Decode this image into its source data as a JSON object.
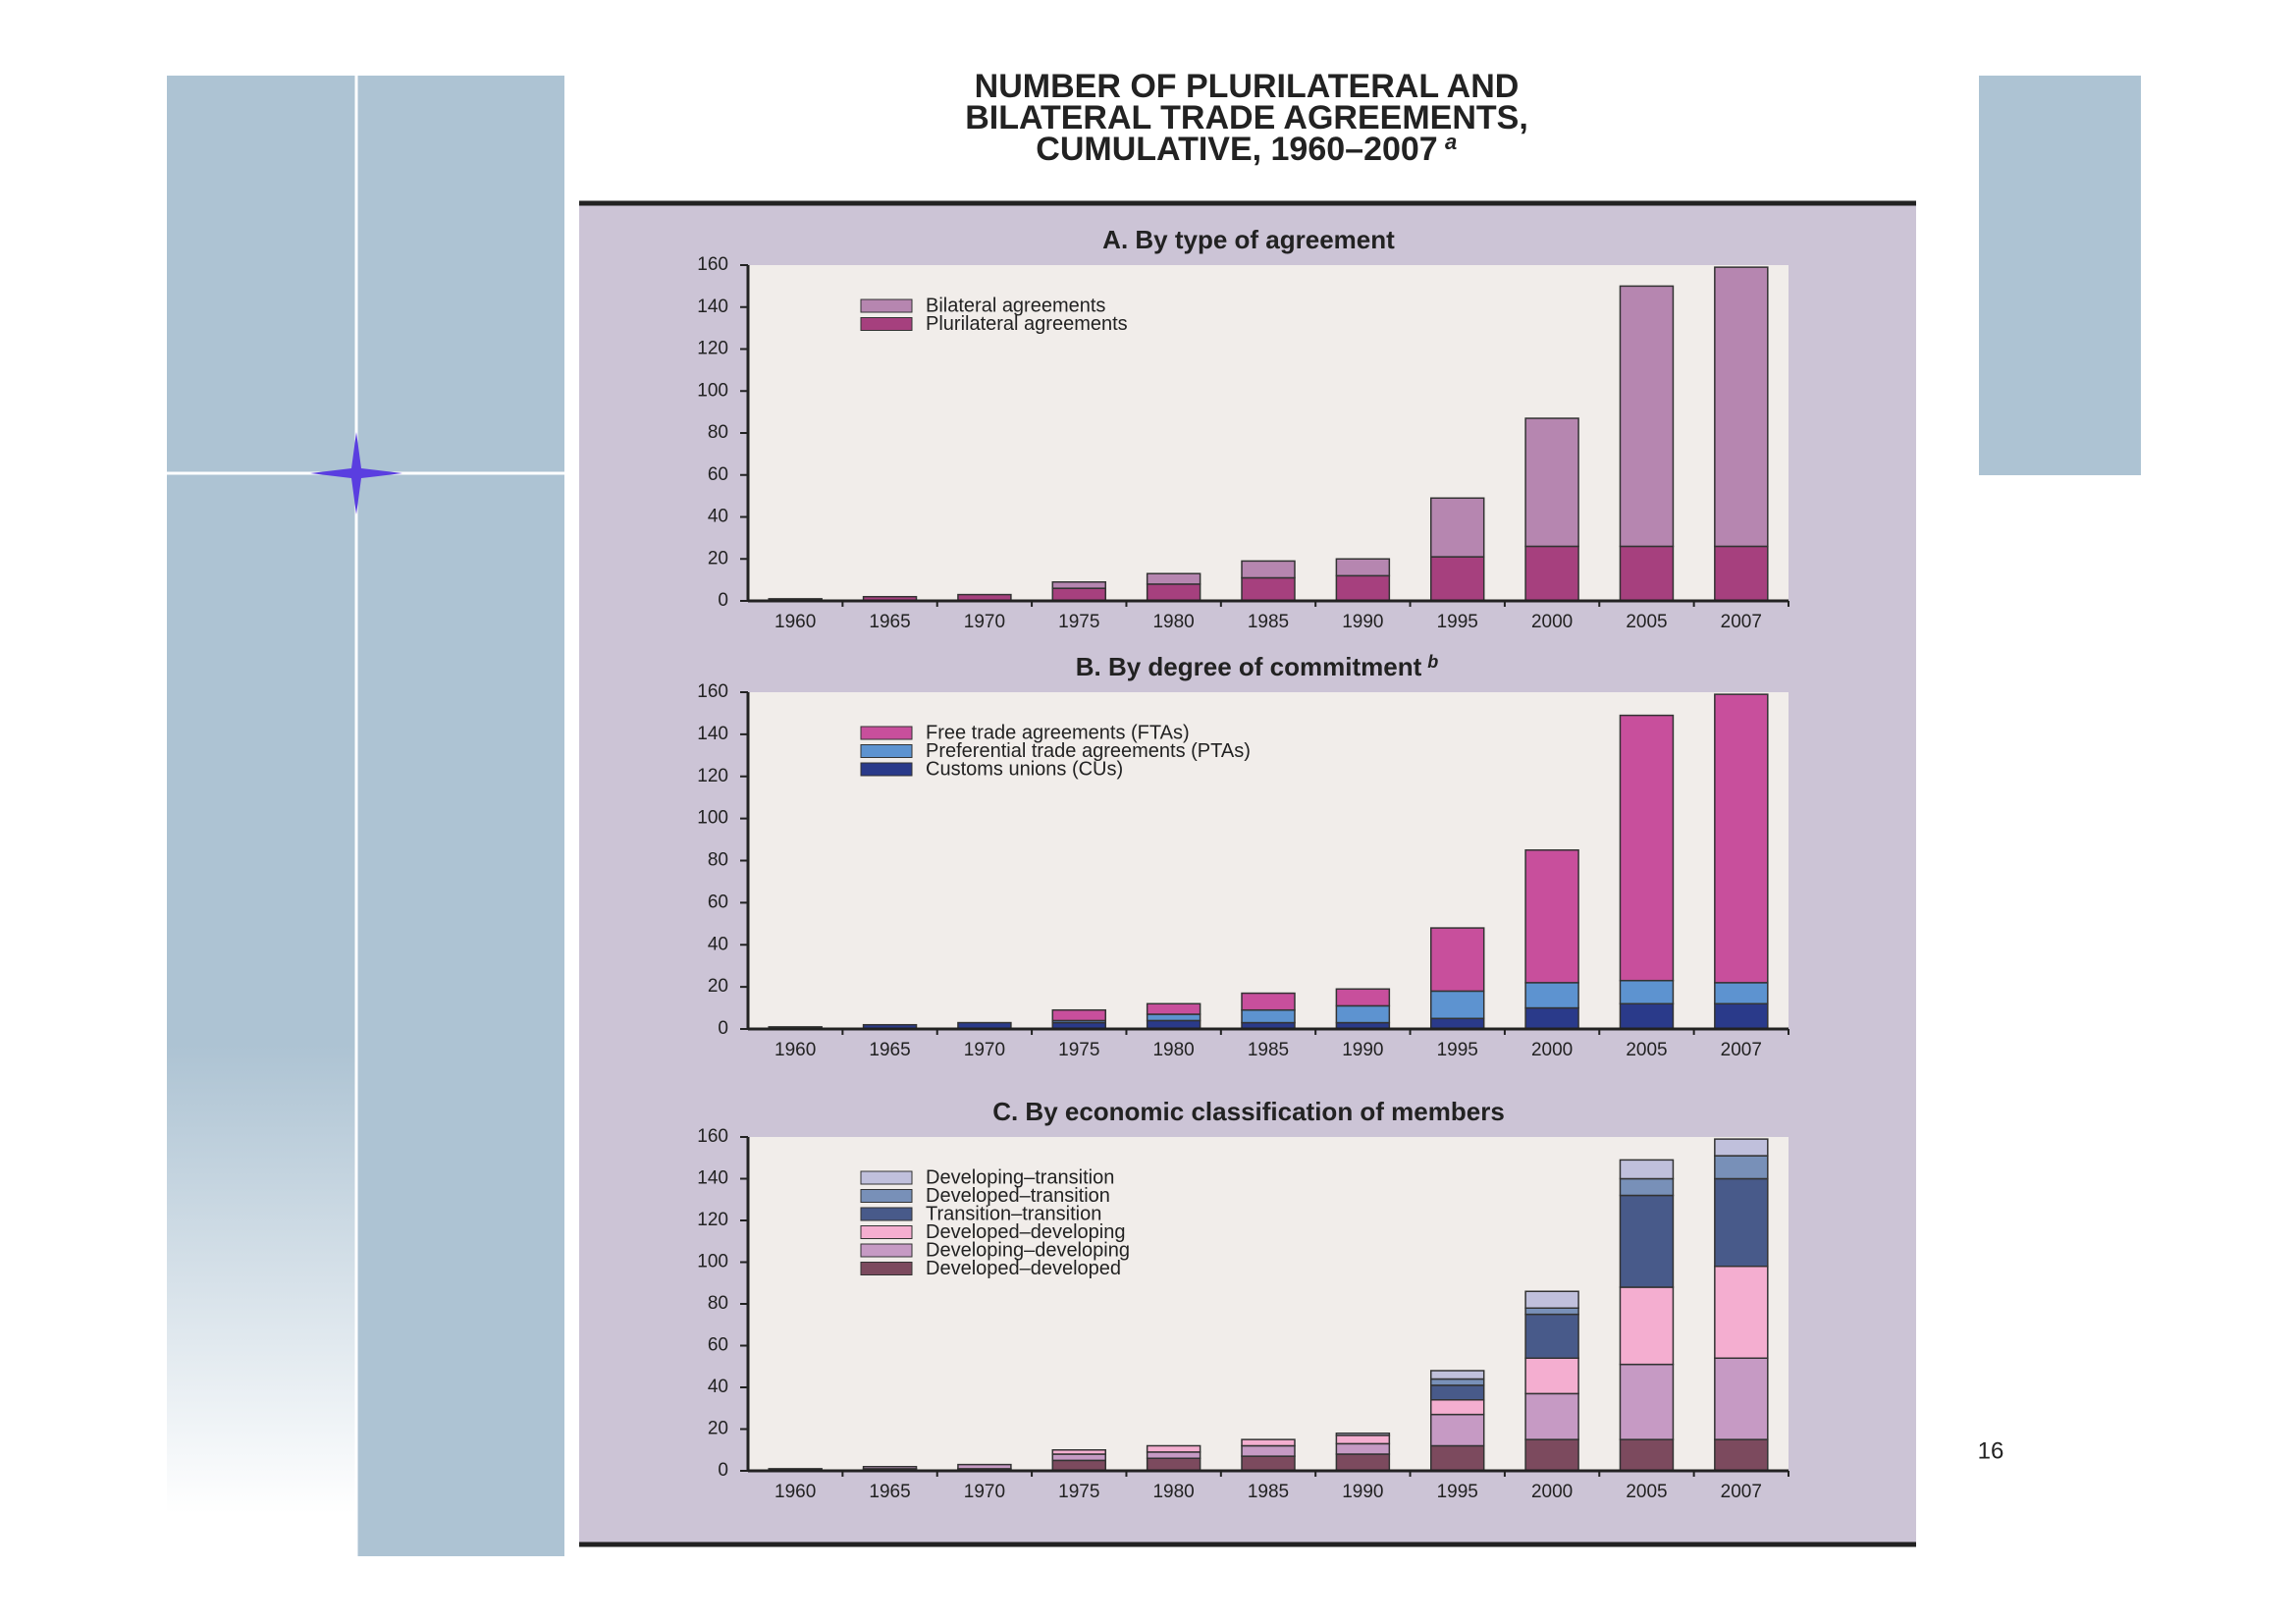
{
  "slide": {
    "title_lines": [
      "NUMBER OF PLURILATERAL AND",
      "BILATERAL TRADE AGREEMENTS,",
      "CUMULATIVE, 1960–2007"
    ],
    "title_note": "a",
    "page_number": "16"
  },
  "chart_data": [
    {
      "type": "bar",
      "stacked": true,
      "title": "A. By type of agreement",
      "legend": "upper left",
      "categories": [
        "1960",
        "1965",
        "1970",
        "1975",
        "1980",
        "1985",
        "1990",
        "1995",
        "2000",
        "2005",
        "2007"
      ],
      "series": [
        {
          "name": "Plurilateral agreements",
          "color": "#a6407e",
          "values": [
            1,
            2,
            3,
            6,
            8,
            11,
            12,
            21,
            26,
            26,
            26
          ]
        },
        {
          "name": "Bilateral agreements",
          "color": "#b686b0",
          "values": [
            0,
            0,
            0,
            3,
            5,
            8,
            8,
            28,
            61,
            124,
            133
          ]
        }
      ],
      "ylim": [
        0,
        160
      ],
      "yticks": [
        0,
        20,
        40,
        60,
        80,
        100,
        120,
        140,
        160
      ]
    },
    {
      "type": "bar",
      "stacked": true,
      "title": "B. By degree of commitment",
      "title_note": "b",
      "legend": "upper left",
      "categories": [
        "1960",
        "1965",
        "1970",
        "1975",
        "1980",
        "1985",
        "1990",
        "1995",
        "2000",
        "2005",
        "2007"
      ],
      "series": [
        {
          "name": "Customs unions (CUs)",
          "color": "#2a3a8a",
          "values": [
            1,
            2,
            3,
            3,
            4,
            3,
            3,
            5,
            10,
            12,
            12
          ]
        },
        {
          "name": "Preferential trade agreements (PTAs)",
          "color": "#5d93d0",
          "values": [
            0,
            0,
            0,
            1,
            3,
            6,
            8,
            13,
            12,
            11,
            10
          ]
        },
        {
          "name": "Free trade agreements (FTAs)",
          "color": "#c84f9c",
          "values": [
            0,
            0,
            0,
            5,
            5,
            8,
            8,
            30,
            63,
            126,
            137
          ]
        }
      ],
      "ylim": [
        0,
        160
      ],
      "yticks": [
        0,
        20,
        40,
        60,
        80,
        100,
        120,
        140,
        160
      ]
    },
    {
      "type": "bar",
      "stacked": true,
      "title": "C. By economic classification of members",
      "legend": "upper left",
      "categories": [
        "1960",
        "1965",
        "1970",
        "1975",
        "1980",
        "1985",
        "1990",
        "1995",
        "2000",
        "2005",
        "2007"
      ],
      "series": [
        {
          "name": "Developed–developed",
          "color": "#7c4a5e",
          "values": [
            1,
            1,
            1,
            5,
            6,
            7,
            8,
            12,
            15,
            15,
            15
          ]
        },
        {
          "name": "Developing–developing",
          "color": "#c69ac4",
          "values": [
            0,
            1,
            2,
            3,
            3,
            5,
            5,
            15,
            22,
            36,
            39
          ]
        },
        {
          "name": "Developed–developing",
          "color": "#f4aed0",
          "values": [
            0,
            0,
            0,
            2,
            3,
            3,
            4,
            7,
            17,
            37,
            44
          ]
        },
        {
          "name": "Transition–transition",
          "color": "#485a8a",
          "values": [
            0,
            0,
            0,
            0,
            0,
            0,
            0,
            7,
            21,
            44,
            42
          ]
        },
        {
          "name": "Developed–transition",
          "color": "#7890b8",
          "values": [
            0,
            0,
            0,
            0,
            0,
            0,
            0,
            3,
            3,
            8,
            11
          ]
        },
        {
          "name": "Developing–transition",
          "color": "#c0c0dc",
          "values": [
            0,
            0,
            0,
            0,
            0,
            0,
            1,
            4,
            8,
            9,
            8
          ]
        }
      ],
      "ylim": [
        0,
        160
      ],
      "yticks": [
        0,
        20,
        40,
        60,
        80,
        100,
        120,
        140,
        160
      ]
    }
  ]
}
